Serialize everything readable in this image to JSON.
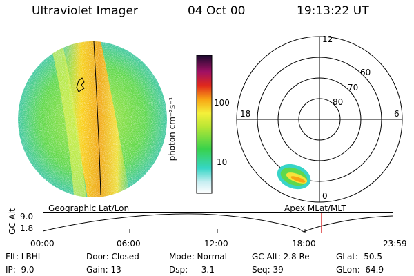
{
  "header": {
    "title": "Ultraviolet Imager",
    "date": "04 Oct 00",
    "time": "19:13:22 UT"
  },
  "colorbar": {
    "unit_label": "photon cm⁻²s⁻¹",
    "ticks": [
      "100",
      "10"
    ],
    "scale": "log"
  },
  "polar_plot": {
    "mlt_labels": {
      "top": "12",
      "left": "18",
      "right": "6",
      "bottom": "0"
    },
    "lat_labels": [
      "60",
      "70",
      "80"
    ]
  },
  "panels": {
    "left_label": "Geographic Lat/Lon",
    "right_label": "Apex MLat/MLT"
  },
  "orbit_plot": {
    "ylabel": "GC Alt",
    "y_ticks": [
      "9.0",
      "1.8"
    ],
    "x_ticks": [
      "00:00",
      "06:00",
      "12:00",
      "18:00",
      "23:59"
    ],
    "current_time_marker_color": "#d00000"
  },
  "footer": {
    "row1": [
      "Flt: LBHL",
      "Door: Closed",
      "Mode: Normal",
      "GC Alt: 2.8 Re",
      "GLat: -50.5"
    ],
    "row2": [
      "IP:  9.0",
      "Gain: 13",
      "Dsp:    -3.1",
      "Seq: 39",
      "GLon:  64.9"
    ]
  },
  "colors": {
    "accent_red": "#d00000",
    "auroral_band": "#f5b400",
    "background_glow": "#39d24f"
  }
}
